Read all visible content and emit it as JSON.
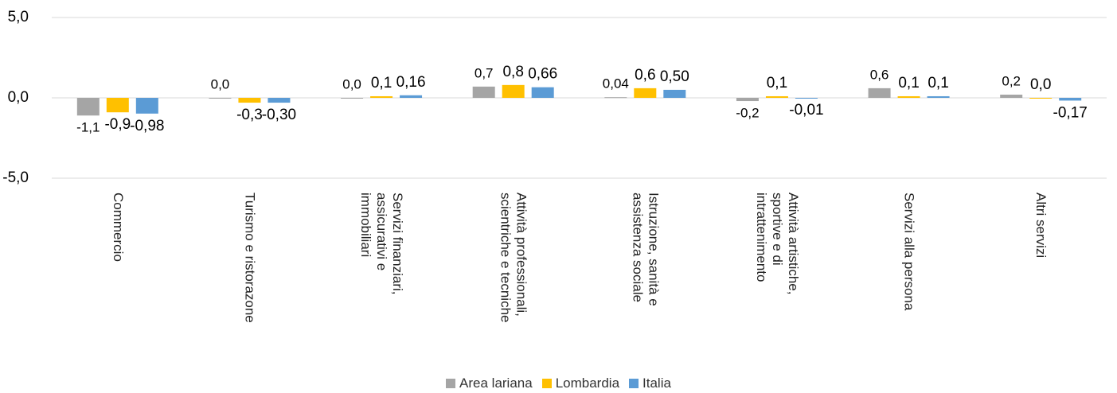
{
  "chart_data": {
    "type": "bar",
    "categories": [
      "Commercio",
      "Turismo e ristorazone",
      "Servizi finanziari, assicurativi e immobiliari",
      "Attività professionali, scientriche e tecniche",
      "Istruzione, sanità e assistenza sociale",
      "Attività artistiche, sportive e di intrattenimento",
      "Servizi alla persona",
      "Altri servizi"
    ],
    "series": [
      {
        "name": "Area lariana",
        "color": "#a5a5a5",
        "values": [
          -1.1,
          0.0,
          0.0,
          0.7,
          0.04,
          -0.2,
          0.6,
          0.2
        ],
        "value_labels": [
          "-1,1",
          "0,0",
          "0,0",
          "0,7",
          "0,04",
          "-0,2",
          "0,6",
          "0,2"
        ]
      },
      {
        "name": "Lombardia",
        "color": "#ffc000",
        "values": [
          -0.9,
          -0.3,
          0.1,
          0.8,
          0.6,
          0.1,
          0.1,
          0.0
        ],
        "value_labels": [
          "-0,9",
          "-0,3",
          "0,1",
          "0,8",
          "0,6",
          "0,1",
          "0,1",
          "0,0"
        ]
      },
      {
        "name": "Italia",
        "color": "#5b9bd5",
        "values": [
          -0.98,
          -0.3,
          0.16,
          0.66,
          0.5,
          -0.01,
          0.1,
          -0.17
        ],
        "value_labels": [
          "-0,98",
          "-0,30",
          "0,16",
          "0,66",
          "0,50",
          "-0,01",
          "0,1",
          "-0,17"
        ]
      }
    ],
    "ylim": [
      -5,
      5
    ],
    "yticks": [
      {
        "value": 5,
        "label": "5,0"
      },
      {
        "value": 0,
        "label": "0,0"
      },
      {
        "value": -5,
        "label": "-5,0"
      }
    ],
    "grid": true,
    "legend": "bottom"
  }
}
